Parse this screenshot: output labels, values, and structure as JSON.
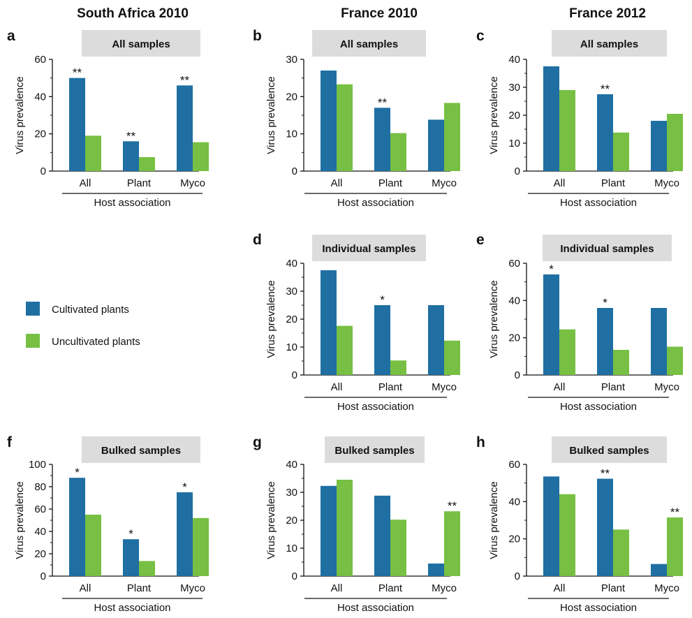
{
  "columns": [
    "South Africa 2010",
    "France 2010",
    "France 2012"
  ],
  "legend": {
    "entries": [
      {
        "label": "Cultivated plants",
        "color": "#1f6fa3"
      },
      {
        "label": "Uncultivated plants",
        "color": "#77c043"
      }
    ],
    "placement": "left-middle"
  },
  "colors": {
    "cultivated": "#1f6fa3",
    "uncultivated": "#77c043",
    "banner": "#dcdcdc"
  },
  "chart_data": [
    {
      "panel": "a",
      "type": "bar",
      "column": "South Africa 2010",
      "title": "All samples",
      "categories": [
        "All",
        "Plant",
        "Myco"
      ],
      "series": [
        {
          "name": "Cultivated plants",
          "values": [
            50,
            16,
            46
          ]
        },
        {
          "name": "Uncultivated plants",
          "values": [
            19,
            7.5,
            15.5
          ]
        }
      ],
      "significance": [
        "**",
        "**",
        "**"
      ],
      "ylabel": "Virus prevalence",
      "xlabel": "Host association",
      "ylim": [
        0,
        60
      ],
      "yticks": [
        0,
        20,
        40,
        60
      ]
    },
    {
      "panel": "b",
      "type": "bar",
      "column": "France 2010",
      "title": "All samples",
      "categories": [
        "All",
        "Plant",
        "Myco"
      ],
      "series": [
        {
          "name": "Cultivated plants",
          "values": [
            27,
            17,
            13.8
          ]
        },
        {
          "name": "Uncultivated plants",
          "values": [
            23.3,
            10.2,
            18.3
          ]
        }
      ],
      "significance": [
        "",
        "**",
        ""
      ],
      "ylabel": "Virus prevalence",
      "xlabel": "Host association",
      "ylim": [
        0,
        30
      ],
      "yticks": [
        0,
        10,
        20,
        30
      ]
    },
    {
      "panel": "c",
      "type": "bar",
      "column": "France 2012",
      "title": "All samples",
      "categories": [
        "All",
        "Plant",
        "Myco"
      ],
      "series": [
        {
          "name": "Cultivated plants",
          "values": [
            37.5,
            27.5,
            18
          ]
        },
        {
          "name": "Uncultivated plants",
          "values": [
            29,
            13.8,
            20.5
          ]
        }
      ],
      "significance": [
        "",
        "**",
        ""
      ],
      "ylabel": "Virus prevalence",
      "xlabel": "Host association",
      "ylim": [
        0,
        40
      ],
      "yticks": [
        0,
        10,
        20,
        30,
        40
      ]
    },
    {
      "panel": "d",
      "type": "bar",
      "column": "France 2010",
      "title": "Individual samples",
      "categories": [
        "All",
        "Plant",
        "Myco"
      ],
      "series": [
        {
          "name": "Cultivated plants",
          "values": [
            37.5,
            25,
            25
          ]
        },
        {
          "name": "Uncultivated plants",
          "values": [
            17.6,
            5.2,
            12.3
          ]
        }
      ],
      "significance": [
        "",
        "*",
        ""
      ],
      "ylabel": "Virus prevalence",
      "xlabel": "Host association",
      "ylim": [
        0,
        40
      ],
      "yticks": [
        0,
        10,
        20,
        30,
        40
      ]
    },
    {
      "panel": "e",
      "type": "bar",
      "column": "France 2012",
      "title": "Individual samples",
      "categories": [
        "All",
        "Plant",
        "Myco"
      ],
      "series": [
        {
          "name": "Cultivated plants",
          "values": [
            54,
            36,
            36
          ]
        },
        {
          "name": "Uncultivated plants",
          "values": [
            24.5,
            13.5,
            15.2
          ]
        }
      ],
      "significance": [
        "*",
        "*",
        ""
      ],
      "ylabel": "Virus prevalence",
      "xlabel": "Host association",
      "ylim": [
        0,
        60
      ],
      "yticks": [
        0,
        20,
        40,
        60
      ]
    },
    {
      "panel": "f",
      "type": "bar",
      "column": "South Africa 2010",
      "title": "Bulked samples",
      "categories": [
        "All",
        "Plant",
        "Myco"
      ],
      "series": [
        {
          "name": "Cultivated plants",
          "values": [
            88,
            33,
            75
          ]
        },
        {
          "name": "Uncultivated plants",
          "values": [
            55,
            13.5,
            52
          ]
        }
      ],
      "significance": [
        "*",
        "*",
        "*"
      ],
      "ylabel": "Virus prevalence",
      "xlabel": "Host association",
      "ylim": [
        0,
        100
      ],
      "yticks": [
        0,
        20,
        40,
        60,
        80,
        100
      ]
    },
    {
      "panel": "g",
      "type": "bar",
      "column": "France 2010",
      "title": "Bulked samples",
      "categories": [
        "All",
        "Plant",
        "Myco"
      ],
      "series": [
        {
          "name": "Cultivated plants",
          "values": [
            32.3,
            28.8,
            4.5
          ]
        },
        {
          "name": "Uncultivated plants",
          "values": [
            34.5,
            20.2,
            23.2
          ]
        }
      ],
      "significance": [
        "",
        "",
        "**"
      ],
      "sig_series": [
        0,
        0,
        1
      ],
      "ylabel": "Virus prevalence",
      "xlabel": "Host association",
      "ylim": [
        0,
        40
      ],
      "yticks": [
        0,
        10,
        20,
        30,
        40
      ]
    },
    {
      "panel": "h",
      "type": "bar",
      "column": "France 2012",
      "title": "Bulked samples",
      "categories": [
        "All",
        "Plant",
        "Myco"
      ],
      "series": [
        {
          "name": "Cultivated plants",
          "values": [
            53.5,
            52.3,
            6.5
          ]
        },
        {
          "name": "Uncultivated plants",
          "values": [
            44,
            25,
            31.5
          ]
        }
      ],
      "significance": [
        "",
        "**",
        "**"
      ],
      "sig_series": [
        0,
        0,
        1
      ],
      "ylabel": "Virus prevalence",
      "xlabel": "Host association",
      "ylim": [
        0,
        60
      ],
      "yticks": [
        0,
        20,
        40,
        60
      ]
    }
  ]
}
